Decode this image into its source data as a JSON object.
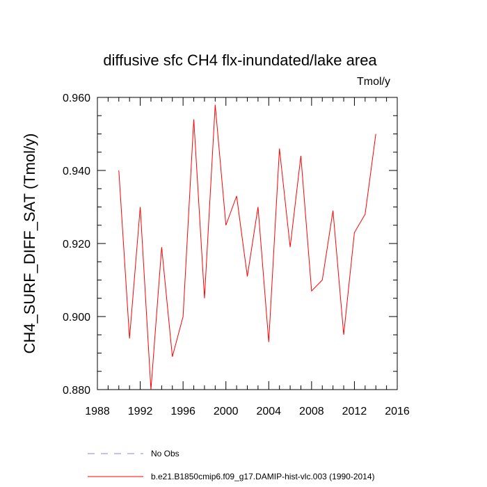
{
  "chart_data": {
    "type": "line",
    "title": "diffusive sfc CH4 flx-inundated/lake area",
    "units": "Tmol/y",
    "xlabel": "",
    "ylabel": "CH4_SURF_DIFF_SAT  (Tmol/y)",
    "xlim": [
      1988,
      2016
    ],
    "ylim": [
      0.88,
      0.96
    ],
    "x_ticks": [
      1988,
      1992,
      1996,
      2000,
      2004,
      2008,
      2012,
      2016
    ],
    "x_tick_labels": [
      "1988",
      "1992",
      "1996",
      "2000",
      "2004",
      "2008",
      "2012",
      "2016"
    ],
    "y_ticks": [
      0.88,
      0.9,
      0.92,
      0.94,
      0.96
    ],
    "y_tick_labels": [
      "0.880",
      "0.900",
      "0.920",
      "0.940",
      "0.960"
    ],
    "grid": false,
    "legend_position": "bottom",
    "series": [
      {
        "name": "b.e21.B1850cmip6.f09_g17.DAMIP-hist-vlc.003 (1990-2014)",
        "color": "#ff0000",
        "dash": "solid",
        "x": [
          1990,
          1991,
          1992,
          1993,
          1994,
          1995,
          1996,
          1997,
          1998,
          1999,
          2000,
          2001,
          2002,
          2003,
          2004,
          2005,
          2006,
          2007,
          2008,
          2009,
          2010,
          2011,
          2012,
          2013,
          2014
        ],
        "values": [
          0.94,
          0.894,
          0.93,
          0.88,
          0.919,
          0.889,
          0.9,
          0.954,
          0.905,
          0.958,
          0.925,
          0.933,
          0.911,
          0.93,
          0.893,
          0.946,
          0.919,
          0.944,
          0.907,
          0.91,
          0.929,
          0.895,
          0.923,
          0.928,
          0.95
        ]
      }
    ],
    "legend": [
      {
        "label": "No Obs",
        "color": "#8080ff",
        "dash": "dashed"
      },
      {
        "label": "b.e21.B1850cmip6.f09_g17.DAMIP-hist-vlc.003 (1990-2014)",
        "color": "#ff0000",
        "dash": "solid"
      }
    ]
  }
}
